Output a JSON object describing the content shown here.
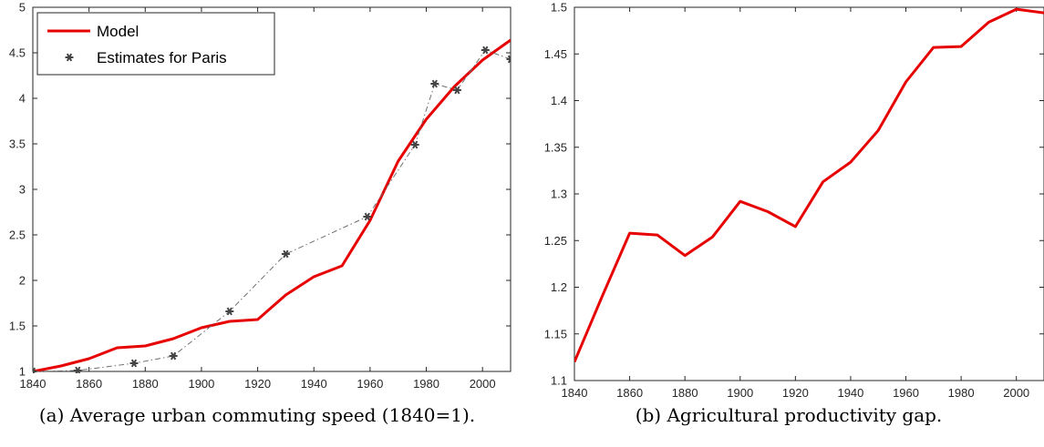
{
  "colors": {
    "model": "#e60000",
    "estimates": "#444444",
    "axis": "#262626"
  },
  "captions": {
    "a": "(a) Average urban commuting speed (1840=1).",
    "b": "(b) Agricultural productivity gap."
  },
  "chart_data": [
    {
      "type": "line",
      "title": "",
      "xlabel": "",
      "ylabel": "",
      "xlim": [
        1840,
        2010
      ],
      "ylim": [
        1,
        5
      ],
      "xticks": [
        1840,
        1860,
        1880,
        1900,
        1920,
        1940,
        1960,
        1980,
        2000
      ],
      "yticks": [
        1,
        1.5,
        2,
        2.5,
        3,
        3.5,
        4,
        4.5,
        5
      ],
      "grid": false,
      "legend": "top-left",
      "series": [
        {
          "name": "Model",
          "style": "solid-red",
          "x": [
            1840,
            1850,
            1860,
            1870,
            1880,
            1890,
            1900,
            1910,
            1920,
            1930,
            1940,
            1950,
            1960,
            1970,
            1980,
            1990,
            2000,
            2010
          ],
          "y": [
            1.0,
            1.06,
            1.14,
            1.26,
            1.28,
            1.36,
            1.48,
            1.55,
            1.57,
            1.84,
            2.04,
            2.16,
            2.66,
            3.31,
            3.77,
            4.13,
            4.42,
            4.64
          ]
        },
        {
          "name": "Estimates for Paris",
          "style": "dashdot-markers",
          "x": [
            1840,
            1856,
            1876,
            1890,
            1910,
            1930,
            1959,
            1976,
            1983,
            1991,
            2001,
            2010
          ],
          "y": [
            1.0,
            1.01,
            1.09,
            1.17,
            1.66,
            2.29,
            2.7,
            3.49,
            4.16,
            4.09,
            4.53,
            4.43
          ]
        }
      ]
    },
    {
      "type": "line",
      "title": "",
      "xlabel": "",
      "ylabel": "",
      "xlim": [
        1840,
        2010
      ],
      "ylim": [
        1.1,
        1.5
      ],
      "xticks": [
        1840,
        1860,
        1880,
        1900,
        1920,
        1940,
        1960,
        1980,
        2000
      ],
      "yticks": [
        1.1,
        1.15,
        1.2,
        1.25,
        1.3,
        1.35,
        1.4,
        1.45,
        1.5
      ],
      "grid": false,
      "series": [
        {
          "style": "solid-red",
          "x": [
            1840,
            1850,
            1860,
            1870,
            1880,
            1890,
            1900,
            1910,
            1920,
            1930,
            1940,
            1950,
            1960,
            1970,
            1980,
            1990,
            2000,
            2010
          ],
          "y": [
            1.12,
            1.19,
            1.258,
            1.256,
            1.234,
            1.254,
            1.292,
            1.281,
            1.265,
            1.313,
            1.334,
            1.368,
            1.42,
            1.457,
            1.458,
            1.484,
            1.498,
            1.494
          ]
        }
      ]
    }
  ]
}
